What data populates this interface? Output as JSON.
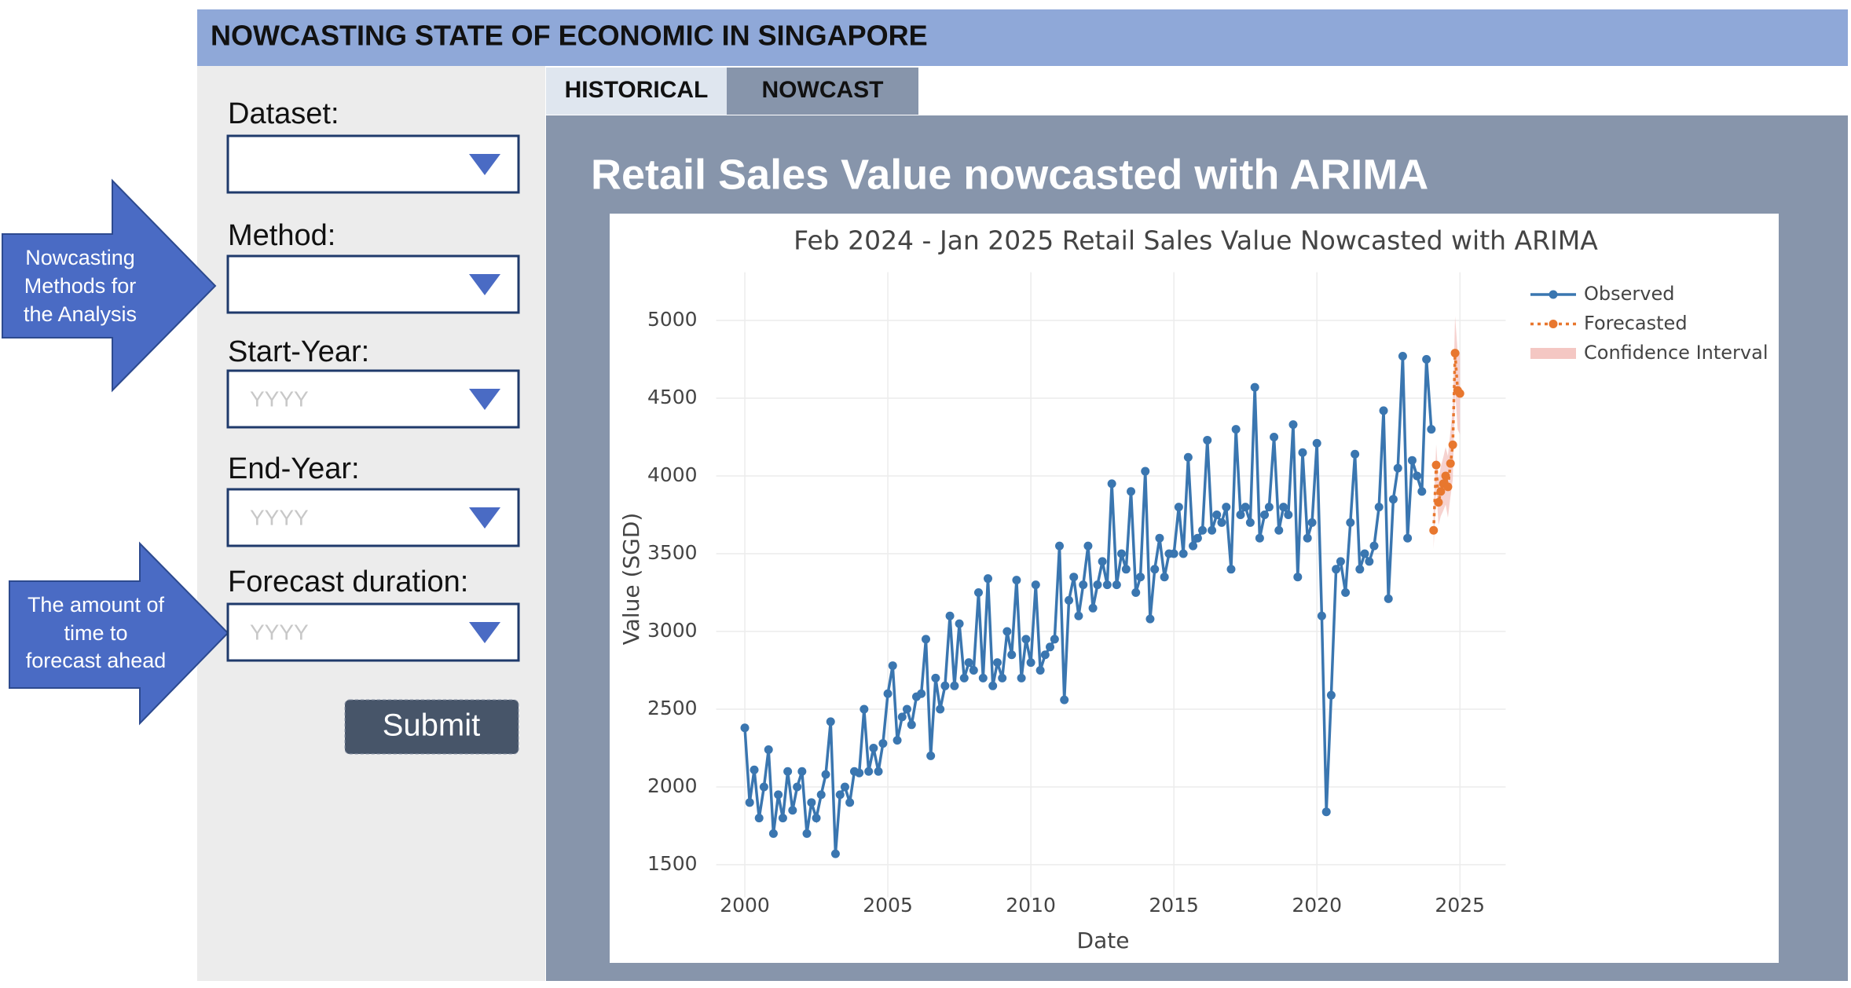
{
  "header": {
    "title": "NOWCASTING STATE OF ECONOMIC IN SINGAPORE"
  },
  "tabs": [
    "HISTORICAL",
    "NOWCAST"
  ],
  "form": {
    "fields": [
      {
        "label": "Dataset:"
      },
      {
        "label": "Method:"
      },
      {
        "label": "Start-Year:",
        "placeholder": "YYYY"
      },
      {
        "label": "End-Year:",
        "placeholder": "YYYY"
      },
      {
        "label": "Forecast duration:",
        "placeholder": "YYYY"
      }
    ],
    "button": "Submit"
  },
  "callouts": [
    {
      "lines": [
        "Nowcasting",
        "Methods for",
        "the Analysis"
      ]
    },
    {
      "lines": [
        "The amount of",
        "time to",
        "forecast ahead"
      ]
    }
  ],
  "panel": {
    "title": "Retail Sales Value nowcasted with ARIMA"
  },
  "chart_data": {
    "type": "line",
    "title": "Feb 2024 - Jan 2025 Retail Sales Value Nowcasted with ARIMA",
    "x_label": "Date",
    "y_label": "Value (SGD)",
    "xlim": [
      1999,
      2026.6
    ],
    "xticks": [
      2000,
      2005,
      2010,
      2015,
      2020,
      2025
    ],
    "ylim": [
      1290,
      5310
    ],
    "yticks": [
      1500,
      2000,
      2500,
      3000,
      3500,
      4000,
      4500,
      5000
    ],
    "grid": true,
    "legend": "top-right",
    "series": [
      {
        "name": "Observed",
        "color": "#3a76b0",
        "style": "solid",
        "x": [
          2000,
          2000.17,
          2000.33,
          2000.5,
          2000.67,
          2000.83,
          2001,
          2001.17,
          2001.33,
          2001.5,
          2001.67,
          2001.83,
          2002,
          2002.17,
          2002.33,
          2002.5,
          2002.67,
          2002.83,
          2003,
          2003.17,
          2003.33,
          2003.5,
          2003.67,
          2003.83,
          2004,
          2004.17,
          2004.33,
          2004.5,
          2004.67,
          2004.83,
          2005,
          2005.17,
          2005.33,
          2005.5,
          2005.67,
          2005.83,
          2006,
          2006.17,
          2006.33,
          2006.5,
          2006.67,
          2006.83,
          2007,
          2007.17,
          2007.33,
          2007.5,
          2007.67,
          2007.83,
          2008,
          2008.17,
          2008.33,
          2008.5,
          2008.67,
          2008.83,
          2009,
          2009.17,
          2009.33,
          2009.5,
          2009.67,
          2009.83,
          2010,
          2010.17,
          2010.33,
          2010.5,
          2010.67,
          2010.83,
          2011,
          2011.17,
          2011.33,
          2011.5,
          2011.67,
          2011.83,
          2012,
          2012.17,
          2012.33,
          2012.5,
          2012.67,
          2012.83,
          2013,
          2013.17,
          2013.33,
          2013.5,
          2013.67,
          2013.83,
          2014,
          2014.17,
          2014.33,
          2014.5,
          2014.67,
          2014.83,
          2015,
          2015.17,
          2015.33,
          2015.5,
          2015.67,
          2015.83,
          2016,
          2016.17,
          2016.33,
          2016.5,
          2016.67,
          2016.83,
          2017,
          2017.17,
          2017.33,
          2017.5,
          2017.67,
          2017.83,
          2018,
          2018.17,
          2018.33,
          2018.5,
          2018.67,
          2018.83,
          2019,
          2019.17,
          2019.33,
          2019.5,
          2019.67,
          2019.83,
          2020,
          2020.17,
          2020.33,
          2020.5,
          2020.67,
          2020.83,
          2021,
          2021.17,
          2021.33,
          2021.5,
          2021.67,
          2021.83,
          2022,
          2022.17,
          2022.33,
          2022.5,
          2022.67,
          2022.83,
          2023,
          2023.17,
          2023.33,
          2023.5,
          2023.67,
          2023.83,
          2024
        ],
        "values": [
          2380,
          1900,
          2110,
          1800,
          2000,
          2240,
          1700,
          1950,
          1800,
          2100,
          1850,
          2000,
          2100,
          1700,
          1900,
          1800,
          1950,
          2080,
          2420,
          1570,
          1950,
          2000,
          1900,
          2100,
          2090,
          2500,
          2100,
          2250,
          2100,
          2280,
          2600,
          2780,
          2300,
          2450,
          2500,
          2400,
          2580,
          2600,
          2950,
          2200,
          2700,
          2500,
          2650,
          3100,
          2650,
          3050,
          2700,
          2800,
          2750,
          3250,
          2700,
          3340,
          2650,
          2800,
          2700,
          3000,
          2850,
          3330,
          2700,
          2950,
          2800,
          3300,
          2750,
          2850,
          2900,
          2950,
          3550,
          2560,
          3200,
          3350,
          3100,
          3300,
          3550,
          3150,
          3300,
          3450,
          3300,
          3950,
          3300,
          3500,
          3400,
          3900,
          3250,
          3350,
          4030,
          3080,
          3400,
          3600,
          3350,
          3500,
          3500,
          3800,
          3500,
          4120,
          3550,
          3600,
          3650,
          4230,
          3650,
          3750,
          3700,
          3800,
          3400,
          4300,
          3750,
          3800,
          3700,
          4570,
          3600,
          3750,
          3800,
          4250,
          3650,
          3800,
          3750,
          4330,
          3350,
          4150,
          3600,
          3700,
          4210,
          3100,
          1840,
          2590,
          3400,
          3450,
          3250,
          3700,
          4140,
          3400,
          3500,
          3450,
          3550,
          3800,
          4420,
          3210,
          3850,
          4050,
          4770,
          3600,
          4100,
          4000,
          3900,
          4750,
          4300
        ]
      },
      {
        "name": "Forecasted",
        "color": "#e8772e",
        "style": "dotted",
        "x": [
          2024.08,
          2024.17,
          2024.25,
          2024.33,
          2024.42,
          2024.5,
          2024.58,
          2024.67,
          2024.75,
          2024.83,
          2024.92,
          2025
        ],
        "values": [
          3650,
          4070,
          3830,
          3900,
          3950,
          4000,
          3930,
          4080,
          4200,
          4790,
          4550,
          4530
        ]
      },
      {
        "name": "Confidence Interval",
        "color": "#f4c7c3",
        "x": [
          2024.08,
          2024.17,
          2024.25,
          2024.33,
          2024.42,
          2024.5,
          2024.58,
          2024.67,
          2024.75,
          2024.83,
          2024.92,
          2025
        ],
        "lower": [
          3530,
          3937,
          3684,
          3741,
          3778,
          3815,
          3732,
          3869,
          3976,
          4553,
          4300,
          4267
        ],
        "upper": [
          3770,
          4203,
          3976,
          4059,
          4122,
          4185,
          4128,
          4291,
          4424,
          5027,
          4800,
          4793
        ]
      }
    ]
  }
}
